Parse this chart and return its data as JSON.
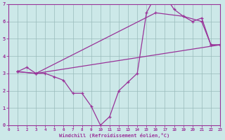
{
  "line1_x": [
    1,
    2,
    3,
    4,
    5,
    6,
    7,
    8,
    9,
    10,
    11,
    12,
    13,
    14,
    15,
    16,
    17,
    18,
    19,
    20,
    21,
    22,
    23
  ],
  "line1_y": [
    3.1,
    3.35,
    3.0,
    3.0,
    2.8,
    2.6,
    1.85,
    1.85,
    1.1,
    0.0,
    0.5,
    2.0,
    2.5,
    3.0,
    6.5,
    7.5,
    7.5,
    6.7,
    6.3,
    6.0,
    6.2,
    4.65,
    4.65
  ],
  "line2_x": [
    1,
    3,
    23
  ],
  "line2_y": [
    3.1,
    3.0,
    4.65
  ],
  "line3_x": [
    1,
    3,
    16,
    19,
    21,
    22,
    23
  ],
  "line3_y": [
    3.1,
    3.0,
    6.5,
    6.3,
    6.0,
    4.65,
    4.65
  ],
  "bg_color": "#cce8e8",
  "line_color": "#993399",
  "grid_color": "#99bbbb",
  "xlabel": "Windchill (Refroidissement éolien,°C)",
  "xlim": [
    0,
    23
  ],
  "ylim": [
    0,
    7
  ],
  "xticks": [
    0,
    1,
    2,
    3,
    4,
    5,
    6,
    7,
    8,
    9,
    10,
    11,
    12,
    13,
    14,
    15,
    16,
    17,
    18,
    19,
    20,
    21,
    22,
    23
  ],
  "yticks": [
    0,
    1,
    2,
    3,
    4,
    5,
    6,
    7
  ],
  "marker": "+"
}
